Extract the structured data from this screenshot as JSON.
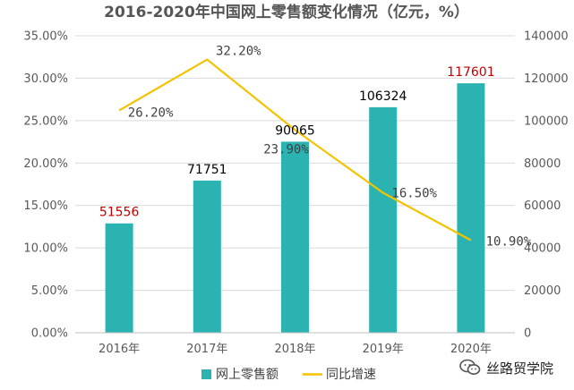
{
  "chart_data": {
    "type": "bar+line",
    "title": "2016-2020年中国网上零售额变化情况（亿元，%）",
    "categories": [
      "2016年",
      "2017年",
      "2018年",
      "2019年",
      "2020年"
    ],
    "series": [
      {
        "name": "网上零售额",
        "type": "bar",
        "axis": "right",
        "values": [
          51556,
          71751,
          90065,
          106324,
          117601
        ],
        "labels": [
          "51556",
          "71751",
          "90065",
          "106324",
          "117601"
        ],
        "label_colors": [
          "#c00000",
          "#000000",
          "#000000",
          "#000000",
          "#c00000"
        ],
        "color": "#2bb3b1"
      },
      {
        "name": "同比增速",
        "type": "line",
        "axis": "left",
        "values": [
          26.2,
          32.2,
          23.9,
          16.5,
          10.9
        ],
        "labels": [
          "26.20%",
          "32.20%",
          "23.90%",
          "16.50%",
          "10.90%"
        ],
        "color": "#f5c200"
      }
    ],
    "y_left": {
      "min": 0,
      "max": 35,
      "step": 5,
      "ticks": [
        "0.00%",
        "5.00%",
        "10.00%",
        "15.00%",
        "20.00%",
        "25.00%",
        "30.00%",
        "35.00%"
      ]
    },
    "y_right": {
      "min": 0,
      "max": 140000,
      "step": 20000,
      "ticks": [
        "0",
        "20000",
        "40000",
        "60000",
        "80000",
        "100000",
        "120000",
        "140000"
      ]
    },
    "grid": true,
    "legend_position": "bottom"
  },
  "watermark": {
    "text": "丝路贸学院",
    "icon": "wechat-icon"
  }
}
